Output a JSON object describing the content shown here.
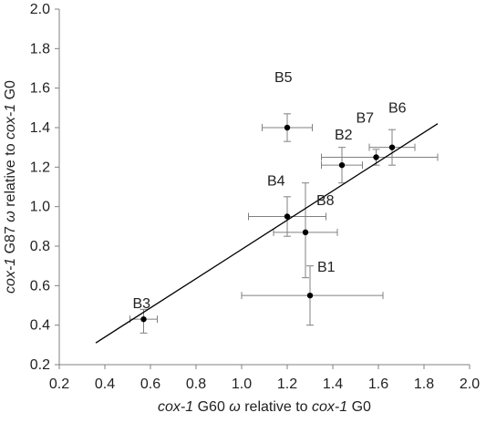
{
  "chart_data": {
    "type": "scatter",
    "title": "",
    "xlabel": {
      "parts": [
        "cox-1",
        " G60 ",
        "ω",
        " relative to ",
        "cox-1",
        " G0"
      ]
    },
    "ylabel": {
      "parts": [
        "cox-1",
        " G87 ",
        "ω",
        " relative to ",
        "cox-1",
        " G0"
      ]
    },
    "xlim": [
      0.2,
      2.0
    ],
    "ylim": [
      0.2,
      2.0
    ],
    "x_ticks": [
      "0.2",
      "0.4",
      "0.6",
      "0.8",
      "1.0",
      "1.2",
      "1.4",
      "1.6",
      "1.8",
      "2.0"
    ],
    "y_ticks": [
      "0.2",
      "0.4",
      "0.6",
      "0.8",
      "1.0",
      "1.2",
      "1.4",
      "1.6",
      "1.8",
      "2.0"
    ],
    "grid": false,
    "legend": false,
    "points": [
      {
        "label": "B1",
        "x": 1.3,
        "y": 0.55,
        "xerr": [
          1.0,
          1.62
        ],
        "yerr": [
          0.4,
          0.7
        ]
      },
      {
        "label": "B2",
        "x": 1.44,
        "y": 1.21,
        "xerr": [
          1.35,
          1.53
        ],
        "yerr": [
          1.12,
          1.3
        ]
      },
      {
        "label": "B3",
        "x": 0.57,
        "y": 0.43,
        "xerr": [
          0.51,
          0.63
        ],
        "yerr": [
          0.36,
          0.48
        ]
      },
      {
        "label": "B4",
        "x": 1.2,
        "y": 0.95,
        "xerr": [
          1.03,
          1.37
        ],
        "yerr": [
          0.85,
          1.05
        ]
      },
      {
        "label": "B5",
        "x": 1.2,
        "y": 1.4,
        "xerr": [
          1.09,
          1.31
        ],
        "yerr": [
          1.33,
          1.47
        ]
      },
      {
        "label": "B6",
        "x": 1.66,
        "y": 1.3,
        "xerr": [
          1.56,
          1.76
        ],
        "yerr": [
          1.21,
          1.39
        ]
      },
      {
        "label": "B7",
        "x": 1.59,
        "y": 1.25,
        "xerr": [
          1.35,
          1.86
        ],
        "yerr": [
          1.21,
          1.29
        ]
      },
      {
        "label": "B8",
        "x": 1.28,
        "y": 0.87,
        "xerr": [
          1.14,
          1.42
        ],
        "yerr": [
          0.64,
          1.12
        ]
      }
    ],
    "trendline": {
      "x1": 0.36,
      "y1": 0.31,
      "x2": 1.86,
      "y2": 1.42
    },
    "colors": {
      "points": "#000000",
      "errorbars": "#808080",
      "axes": "#808080",
      "trendline": "#000000"
    }
  }
}
